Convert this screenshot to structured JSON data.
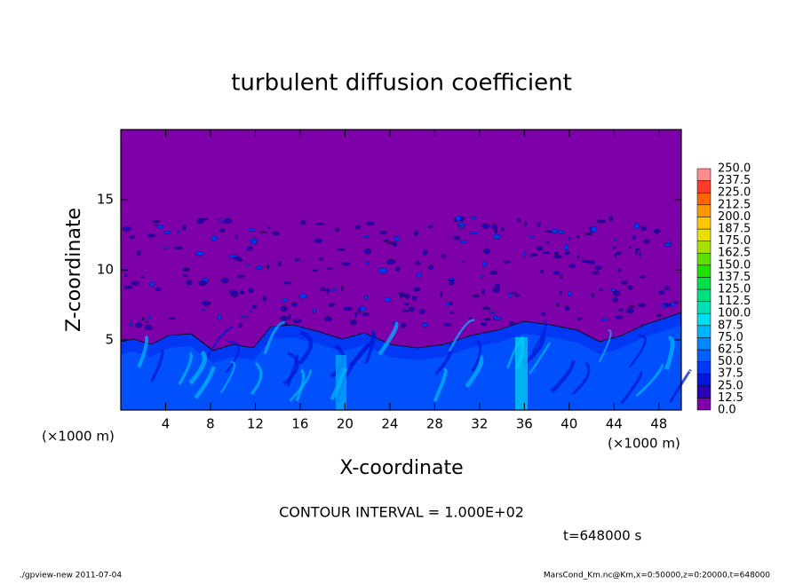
{
  "chart_data": {
    "type": "contour",
    "title": "turbulent diffusion coefficient",
    "xlabel": "X-coordinate",
    "ylabel": "Z-coordinate",
    "xunit": "(×1000 m)",
    "xlim": [
      0,
      50
    ],
    "ylim": [
      0,
      20
    ],
    "xticks": [
      4,
      8,
      12,
      16,
      20,
      24,
      28,
      32,
      36,
      40,
      44,
      48
    ],
    "yticks": [
      5,
      10,
      15
    ],
    "background_color": "#7d00a8",
    "colorbar": {
      "levels": [
        {
          "value": 0,
          "label": "0.0"
        },
        12.5,
        {
          "value": 25,
          "label": "25.0"
        },
        37.5,
        {
          "value": 50,
          "label": "50.0"
        },
        62.5,
        {
          "value": 75,
          "label": "75.0"
        },
        87.5,
        {
          "value": 100,
          "label": "100.0"
        },
        112.5,
        {
          "value": 125,
          "label": "125.0"
        },
        137.5,
        {
          "value": 150,
          "label": "150.0"
        },
        162.5,
        {
          "value": 175,
          "label": "175.0"
        },
        187.5,
        {
          "value": 200,
          "label": "200.0"
        },
        212.5,
        {
          "value": 225,
          "label": "225.0"
        },
        237.5,
        {
          "value": 250,
          "label": "250.0"
        }
      ],
      "colors": [
        "#7d00a8",
        "#2a00b4",
        "#0018d8",
        "#0038f4",
        "#0060ff",
        "#0088ff",
        "#00b4ff",
        "#00dcf0",
        "#00e0b4",
        "#00e080",
        "#00e048",
        "#20e000",
        "#60e000",
        "#a8e000",
        "#e8e000",
        "#ffc800",
        "#ff9800",
        "#ff6400",
        "#ff3c28",
        "#ff8c8c"
      ]
    },
    "annotation": "CONTOUR INTERVAL = 1.000E+02",
    "time_label": "t=648000 s",
    "footer_left": "./gpview-new   2011-07-04",
    "footer_right": "MarsCond_Km.nc@Km,x=0:50000,z=0:20000,t=648000"
  }
}
